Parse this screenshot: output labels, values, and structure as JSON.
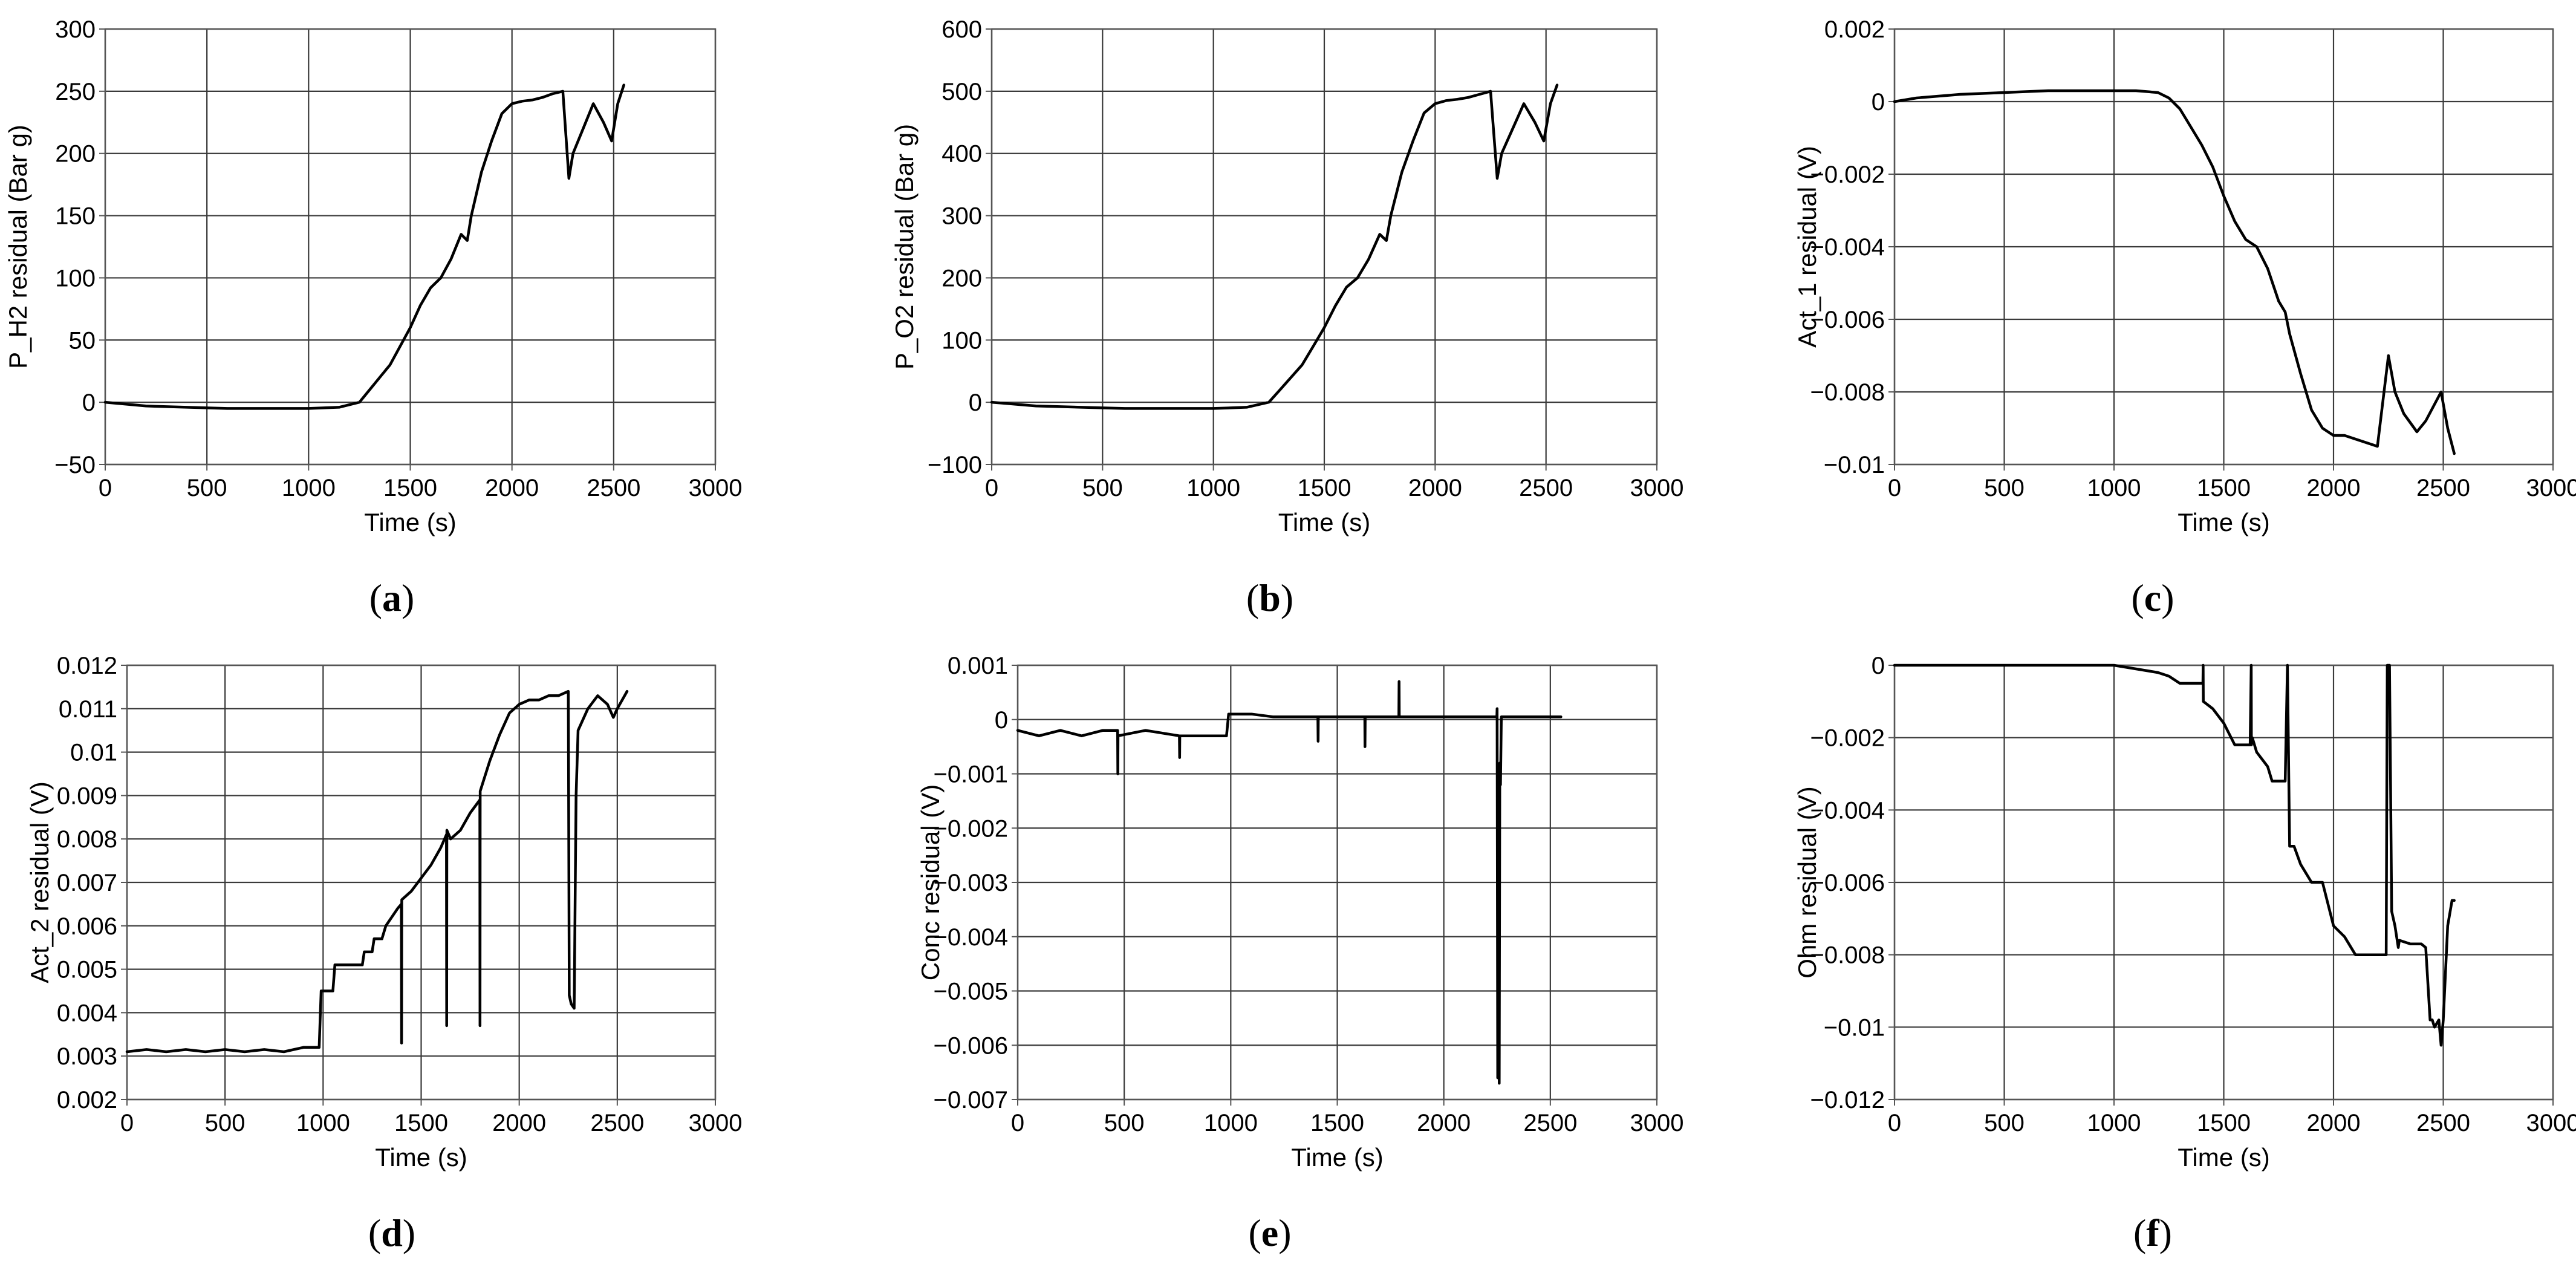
{
  "figure": {
    "panels": [
      {
        "caption_label": "a"
      },
      {
        "caption_label": "b"
      },
      {
        "caption_label": "c"
      },
      {
        "caption_label": "d"
      },
      {
        "caption_label": "e"
      },
      {
        "caption_label": "f"
      }
    ]
  },
  "colors": {
    "line": "#000000",
    "grid": "#3a3a3a",
    "axis": "#555555",
    "background": "#ffffff"
  },
  "chart_data": [
    {
      "type": "line",
      "xlabel": "Time (s)",
      "ylabel": "P_H2 residual (Bar g)",
      "xlim": [
        0,
        3000
      ],
      "ylim": [
        -50,
        300
      ],
      "xticks": [
        0,
        500,
        1000,
        1500,
        2000,
        2500,
        3000
      ],
      "yticks": [
        -50,
        0,
        50,
        100,
        150,
        200,
        250,
        300
      ],
      "ytick_labels": [
        "−50",
        "0",
        "50",
        "100",
        "150",
        "200",
        "250",
        "300"
      ],
      "series": [
        {
          "name": "P_H2 residual",
          "x": [
            0,
            200,
            400,
            600,
            800,
            1000,
            1150,
            1250,
            1300,
            1350,
            1400,
            1450,
            1500,
            1550,
            1600,
            1650,
            1700,
            1750,
            1780,
            1800,
            1850,
            1900,
            1950,
            2000,
            2050,
            2100,
            2150,
            2200,
            2250,
            2280,
            2300,
            2350,
            2400,
            2450,
            2490,
            2520,
            2550
          ],
          "y": [
            0,
            -3,
            -4,
            -5,
            -5,
            -5,
            -4,
            0,
            10,
            20,
            30,
            45,
            60,
            78,
            92,
            100,
            115,
            135,
            130,
            150,
            185,
            210,
            232,
            240,
            242,
            243,
            245,
            248,
            250,
            180,
            200,
            220,
            240,
            225,
            210,
            240,
            255
          ]
        }
      ]
    },
    {
      "type": "line",
      "xlabel": "Time (s)",
      "ylabel": "P_O2 residual (Bar g)",
      "xlim": [
        0,
        3000
      ],
      "ylim": [
        -100,
        600
      ],
      "xticks": [
        0,
        500,
        1000,
        1500,
        2000,
        2500,
        3000
      ],
      "yticks": [
        -100,
        0,
        100,
        200,
        300,
        400,
        500,
        600
      ],
      "ytick_labels": [
        "−100",
        "0",
        "100",
        "200",
        "300",
        "400",
        "500",
        "600"
      ],
      "series": [
        {
          "name": "P_O2 residual",
          "x": [
            0,
            200,
            400,
            600,
            800,
            1000,
            1150,
            1250,
            1300,
            1350,
            1400,
            1450,
            1500,
            1550,
            1600,
            1650,
            1700,
            1750,
            1780,
            1800,
            1850,
            1900,
            1950,
            2000,
            2050,
            2100,
            2150,
            2200,
            2250,
            2280,
            2300,
            2350,
            2400,
            2450,
            2490,
            2520,
            2550
          ],
          "y": [
            0,
            -6,
            -8,
            -10,
            -10,
            -10,
            -8,
            0,
            20,
            40,
            60,
            90,
            120,
            155,
            185,
            200,
            230,
            270,
            260,
            300,
            370,
            420,
            465,
            480,
            485,
            487,
            490,
            495,
            500,
            360,
            400,
            440,
            480,
            450,
            420,
            480,
            510
          ]
        }
      ]
    },
    {
      "type": "line",
      "xlabel": "Time (s)",
      "ylabel": "Act_1 residual (V)",
      "xlim": [
        0,
        3000
      ],
      "ylim": [
        -0.01,
        0.002
      ],
      "xticks": [
        0,
        500,
        1000,
        1500,
        2000,
        2500,
        3000
      ],
      "yticks": [
        -0.01,
        -0.008,
        -0.006,
        -0.004,
        -0.002,
        0,
        0.002
      ],
      "ytick_labels": [
        "−0.01",
        "−0.008",
        "−0.006",
        "−0.004",
        "−0.002",
        "0",
        "0.002"
      ],
      "series": [
        {
          "name": "Act_1 residual",
          "x": [
            0,
            100,
            300,
            500,
            700,
            900,
            1100,
            1200,
            1250,
            1300,
            1350,
            1400,
            1450,
            1500,
            1550,
            1600,
            1650,
            1700,
            1750,
            1780,
            1800,
            1850,
            1900,
            1950,
            2000,
            2050,
            2100,
            2200,
            2250,
            2280,
            2320,
            2380,
            2420,
            2490,
            2520,
            2550
          ],
          "y": [
            0,
            0.0001,
            0.0002,
            0.00025,
            0.0003,
            0.0003,
            0.0003,
            0.00025,
            0.0001,
            -0.0002,
            -0.0007,
            -0.0012,
            -0.0018,
            -0.0026,
            -0.0033,
            -0.0038,
            -0.004,
            -0.0046,
            -0.0055,
            -0.0058,
            -0.0064,
            -0.0075,
            -0.0085,
            -0.009,
            -0.0092,
            -0.0092,
            -0.0093,
            -0.0095,
            -0.007,
            -0.008,
            -0.0086,
            -0.0091,
            -0.0088,
            -0.008,
            -0.009,
            -0.0097
          ]
        }
      ]
    },
    {
      "type": "line",
      "xlabel": "Time (s)",
      "ylabel": "Act_2 residual (V)",
      "xlim": [
        0,
        3000
      ],
      "ylim": [
        0.002,
        0.012
      ],
      "xticks": [
        0,
        500,
        1000,
        1500,
        2000,
        2500,
        3000
      ],
      "yticks": [
        0.002,
        0.003,
        0.004,
        0.005,
        0.006,
        0.007,
        0.008,
        0.009,
        0.01,
        0.011,
        0.012
      ],
      "ytick_labels": [
        "0.002",
        "0.003",
        "0.004",
        "0.005",
        "0.006",
        "0.007",
        "0.008",
        "0.009",
        "0.01",
        "0.011",
        "0.012"
      ],
      "series": [
        {
          "name": "Act_2 residual",
          "x": [
            0,
            100,
            200,
            300,
            400,
            500,
            600,
            700,
            800,
            900,
            980,
            990,
            1050,
            1060,
            1200,
            1210,
            1250,
            1260,
            1300,
            1320,
            1350,
            1380,
            1399,
            1400,
            1401,
            1450,
            1500,
            1550,
            1600,
            1629,
            1630,
            1631,
            1650,
            1700,
            1750,
            1799,
            1800,
            1801,
            1850,
            1900,
            1950,
            2000,
            2050,
            2100,
            2150,
            2200,
            2250,
            2255,
            2265,
            2280,
            2290,
            2300,
            2350,
            2400,
            2450,
            2480,
            2500,
            2550
          ],
          "y": [
            0.0031,
            0.00315,
            0.0031,
            0.00315,
            0.0031,
            0.00315,
            0.0031,
            0.00315,
            0.0031,
            0.0032,
            0.0032,
            0.0045,
            0.0045,
            0.0051,
            0.0051,
            0.0054,
            0.0054,
            0.0057,
            0.0057,
            0.006,
            0.0062,
            0.0064,
            0.0065,
            0.0033,
            0.0066,
            0.0068,
            0.0071,
            0.0074,
            0.0078,
            0.0081,
            0.0037,
            0.0082,
            0.008,
            0.0082,
            0.0086,
            0.0089,
            0.0037,
            0.0091,
            0.0098,
            0.0104,
            0.0109,
            0.0111,
            0.0112,
            0.0112,
            0.0113,
            0.0113,
            0.0114,
            0.0044,
            0.0042,
            0.0041,
            0.009,
            0.0105,
            0.011,
            0.0113,
            0.0111,
            0.0108,
            0.011,
            0.0114
          ]
        }
      ]
    },
    {
      "type": "line",
      "xlabel": "Time (s)",
      "ylabel": "Conc residual (V)",
      "xlim": [
        0,
        3000
      ],
      "ylim": [
        -0.007,
        0.001
      ],
      "xticks": [
        0,
        500,
        1000,
        1500,
        2000,
        2500,
        3000
      ],
      "yticks": [
        -0.007,
        -0.006,
        -0.005,
        -0.004,
        -0.003,
        -0.002,
        -0.001,
        0,
        0.001
      ],
      "ytick_labels": [
        "−0.007",
        "−0.006",
        "−0.005",
        "−0.004",
        "−0.003",
        "−0.002",
        "−0.001",
        "0",
        "0.001"
      ],
      "series": [
        {
          "name": "Conc residual",
          "x": [
            0,
            100,
            200,
            300,
            400,
            469,
            470,
            471,
            600,
            759,
            760,
            761,
            900,
            980,
            990,
            1100,
            1200,
            1300,
            1409,
            1410,
            1411,
            1500,
            1629,
            1630,
            1631,
            1700,
            1789,
            1790,
            1791,
            1900,
            2000,
            2100,
            2200,
            2249,
            2250,
            2253,
            2256,
            2260,
            2263,
            2266,
            2270,
            2275,
            2300,
            2400,
            2550
          ],
          "y": [
            -0.0002,
            -0.0003,
            -0.0002,
            -0.0003,
            -0.0002,
            -0.0002,
            -0.001,
            -0.0003,
            -0.0002,
            -0.0003,
            -0.0007,
            -0.0003,
            -0.0003,
            -0.0003,
            0.0001,
            0.0001,
            5e-05,
            5e-05,
            5e-05,
            -0.0004,
            5e-05,
            5e-05,
            5e-05,
            -0.0005,
            5e-05,
            5e-05,
            5e-05,
            0.0007,
            5e-05,
            5e-05,
            5e-05,
            5e-05,
            5e-05,
            5e-05,
            0.0002,
            -0.0066,
            -0.0009,
            -0.0067,
            -0.0008,
            -0.0012,
            5e-05,
            5e-05,
            5e-05,
            5e-05,
            5e-05
          ]
        }
      ]
    },
    {
      "type": "line",
      "xlabel": "Time (s)",
      "ylabel": "Ohm residual (V)",
      "xlim": [
        0,
        3000
      ],
      "ylim": [
        -0.012,
        0
      ],
      "xticks": [
        0,
        500,
        1000,
        1500,
        2000,
        2500,
        3000
      ],
      "yticks": [
        -0.012,
        -0.01,
        -0.008,
        -0.006,
        -0.004,
        -0.002,
        0
      ],
      "ytick_labels": [
        "−0.012",
        "−0.01",
        "−0.008",
        "−0.006",
        "−0.004",
        "−0.002",
        "0"
      ],
      "series": [
        {
          "name": "Ohm residual",
          "x": [
            0,
            1000,
            1100,
            1200,
            1250,
            1300,
            1350,
            1405,
            1406,
            1407,
            1450,
            1500,
            1550,
            1620,
            1625,
            1626,
            1630,
            1650,
            1700,
            1720,
            1780,
            1790,
            1800,
            1810,
            1820,
            1850,
            1900,
            1950,
            2000,
            2050,
            2100,
            2150,
            2200,
            2240,
            2245,
            2255,
            2265,
            2280,
            2295,
            2300,
            2350,
            2400,
            2420,
            2440,
            2450,
            2460,
            2480,
            2490,
            2500,
            2520,
            2540,
            2550
          ],
          "y": [
            0,
            0,
            -0.0001,
            -0.0002,
            -0.0003,
            -0.0005,
            -0.0005,
            -0.0005,
            0,
            -0.001,
            -0.0012,
            -0.0016,
            -0.0022,
            -0.0022,
            0,
            -0.0022,
            -0.002,
            -0.0024,
            -0.0028,
            -0.0032,
            -0.0032,
            0,
            -0.005,
            -0.005,
            -0.005,
            -0.0055,
            -0.006,
            -0.006,
            -0.0072,
            -0.0075,
            -0.008,
            -0.008,
            -0.008,
            -0.008,
            0,
            0,
            -0.0068,
            -0.0072,
            -0.0078,
            -0.0076,
            -0.0077,
            -0.0077,
            -0.0078,
            -0.0098,
            -0.0098,
            -0.01,
            -0.0098,
            -0.0105,
            -0.0098,
            -0.0072,
            -0.0065,
            -0.0065
          ]
        }
      ]
    }
  ]
}
